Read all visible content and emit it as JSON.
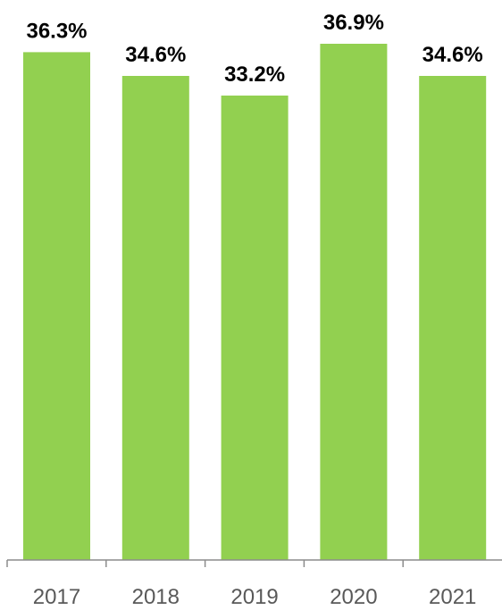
{
  "chart_data": {
    "type": "bar",
    "categories": [
      "2017",
      "2018",
      "2019",
      "2020",
      "2021"
    ],
    "values": [
      36.3,
      34.6,
      33.2,
      36.9,
      34.6
    ],
    "data_labels": [
      "36.3%",
      "34.6%",
      "33.2%",
      "36.9%",
      "34.6%"
    ],
    "unit": "%",
    "title": "",
    "xlabel": "",
    "ylabel": "",
    "ylim": [
      0,
      36.9
    ],
    "grid": false,
    "legend": "none",
    "bar_color": "#92d050",
    "label_color": "#000000",
    "tick_label_color": "#595959",
    "axis_color": "#8c8c8c"
  }
}
